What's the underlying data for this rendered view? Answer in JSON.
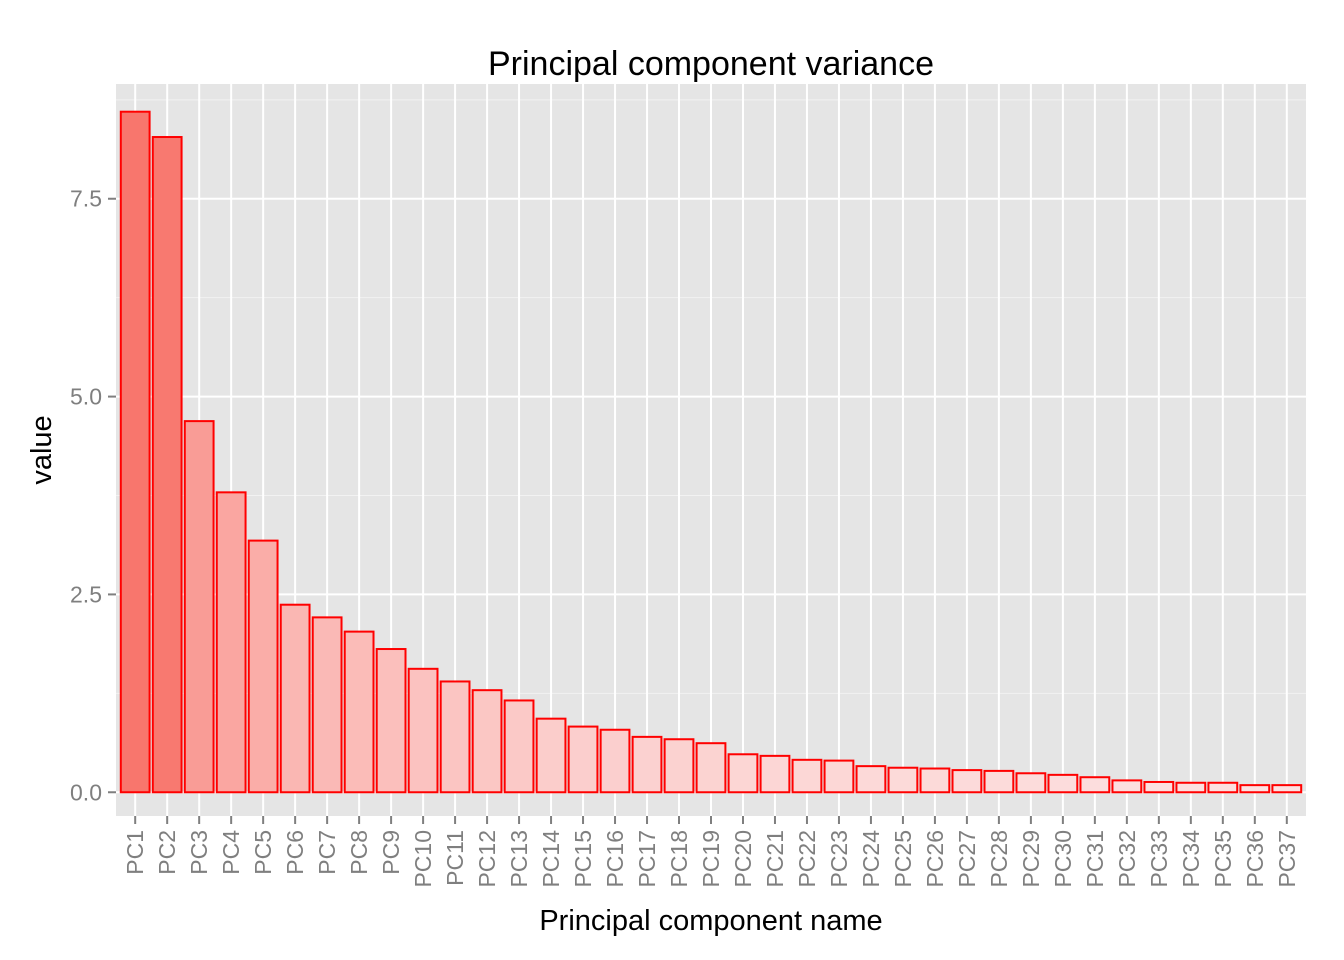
{
  "chart_data": {
    "type": "bar",
    "title": "Principal component variance",
    "xlabel": "Principal component name",
    "ylabel": "value",
    "ylim": [
      -0.3,
      8.95
    ],
    "yticks": [
      "0.0",
      "2.5",
      "5.0",
      "7.5"
    ],
    "grid": true,
    "legend": "none",
    "categories": [
      "PC1",
      "PC2",
      "PC3",
      "PC4",
      "PC5",
      "PC6",
      "PC7",
      "PC8",
      "PC9",
      "PC10",
      "PC11",
      "PC12",
      "PC13",
      "PC14",
      "PC15",
      "PC16",
      "PC17",
      "PC18",
      "PC19",
      "PC20",
      "PC21",
      "PC22",
      "PC23",
      "PC24",
      "PC25",
      "PC26",
      "PC27",
      "PC28",
      "PC29",
      "PC30",
      "PC31",
      "PC32",
      "PC33",
      "PC34",
      "PC35",
      "PC36",
      "PC37"
    ],
    "values": [
      8.6,
      8.28,
      4.69,
      3.79,
      3.18,
      2.37,
      2.21,
      2.03,
      1.81,
      1.56,
      1.4,
      1.29,
      1.16,
      0.93,
      0.83,
      0.79,
      0.7,
      0.67,
      0.62,
      0.48,
      0.46,
      0.41,
      0.4,
      0.33,
      0.31,
      0.3,
      0.28,
      0.27,
      0.24,
      0.22,
      0.19,
      0.15,
      0.13,
      0.12,
      0.12,
      0.09,
      0.09
    ],
    "colors": {
      "panel": "#e5e5e5",
      "grid_major": "#ffffff",
      "grid_minor": "#f2f2f2",
      "bar_stroke": "#ff0000",
      "bar_fill_high": "#f8766d",
      "bar_fill_low": "#fce2e2"
    }
  }
}
